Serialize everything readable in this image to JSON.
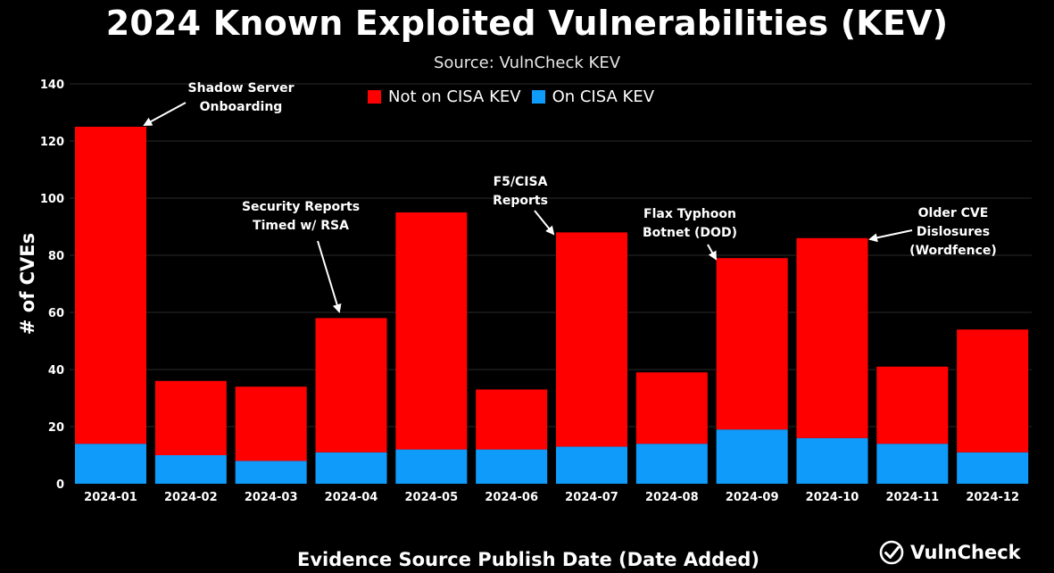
{
  "chart_data": {
    "type": "bar",
    "stacked": true,
    "title": "2024 Known Exploited Vulnerabilities (KEV)",
    "subtitle": "Source: VulnCheck KEV",
    "xlabel": "Evidence Source Publish Date (Date Added)",
    "ylabel": "# of CVEs",
    "ylim": [
      0,
      140
    ],
    "yticks": [
      0,
      20,
      40,
      60,
      80,
      100,
      120,
      140
    ],
    "grid": true,
    "legend_position": "top",
    "categories": [
      "2024-01",
      "2024-02",
      "2024-03",
      "2024-04",
      "2024-05",
      "2024-06",
      "2024-07",
      "2024-08",
      "2024-09",
      "2024-10",
      "2024-11",
      "2024-12"
    ],
    "series": [
      {
        "name": "On CISA KEV",
        "color": "#0f9bfa",
        "values": [
          14,
          10,
          8,
          11,
          12,
          12,
          13,
          14,
          19,
          16,
          14,
          11
        ]
      },
      {
        "name": "Not on CISA KEV",
        "color": "#ff0000",
        "values": [
          111,
          26,
          26,
          47,
          83,
          21,
          75,
          25,
          60,
          70,
          27,
          43
        ]
      }
    ],
    "legend": [
      {
        "name": "Not on CISA KEV",
        "color": "#ff0000"
      },
      {
        "name": "On CISA KEV",
        "color": "#0f9bfa"
      }
    ],
    "annotations": [
      {
        "category": "2024-01",
        "lines": [
          "Shadow Server",
          "Onboarding"
        ]
      },
      {
        "category": "2024-04",
        "lines": [
          "Security Reports",
          "Timed w/ RSA"
        ]
      },
      {
        "category": "2024-07",
        "lines": [
          "F5/CISA",
          "Reports"
        ]
      },
      {
        "category": "2024-09",
        "lines": [
          "Flax Typhoon",
          "Botnet (DOD)"
        ]
      },
      {
        "category": "2024-10",
        "lines": [
          "Older CVE",
          "Dislosures",
          "(Wordfence)"
        ]
      }
    ]
  },
  "brand": {
    "name": "VulnCheck",
    "icon": "check-circle-icon"
  }
}
